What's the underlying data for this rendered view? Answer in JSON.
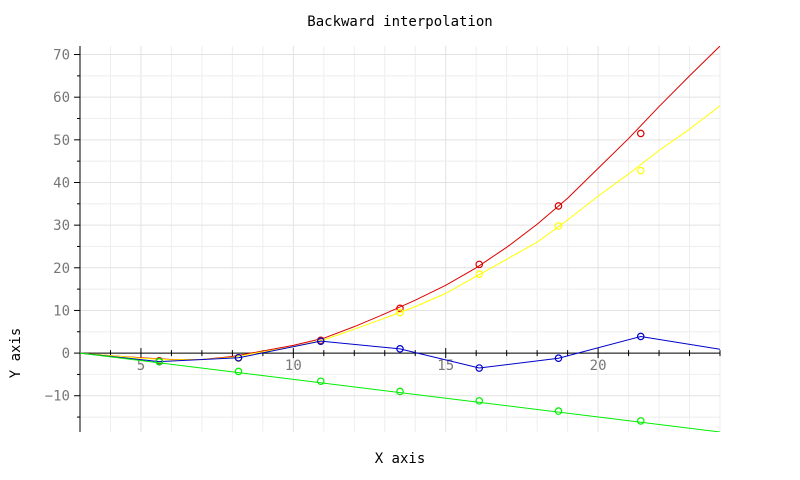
{
  "chart_data": {
    "type": "line",
    "title": "Backward interpolation",
    "xlabel": "X axis",
    "ylabel": "Y axis",
    "xlim": [
      3,
      24
    ],
    "ylim": [
      -18.5,
      72
    ],
    "x_major_ticks": [
      5,
      10,
      15,
      20
    ],
    "x_minor_step": 1,
    "y_major_ticks": [
      -10,
      0,
      10,
      20,
      30,
      40,
      50,
      60,
      70
    ],
    "y_minor_step": 5,
    "grid": true,
    "legend": "none",
    "series": [
      {
        "color": "#dd0000",
        "curve": [
          [
            3,
            0
          ],
          [
            4,
            -0.6
          ],
          [
            5,
            -1.1
          ],
          [
            6,
            -1.5
          ],
          [
            7,
            -1.5
          ],
          [
            8,
            -0.8
          ],
          [
            9,
            0.5
          ],
          [
            10,
            1.8
          ],
          [
            11,
            3.5
          ],
          [
            12,
            6.2
          ],
          [
            13,
            9.2
          ],
          [
            14,
            12.4
          ],
          [
            15,
            15.9
          ],
          [
            16,
            20.0
          ],
          [
            17,
            24.8
          ],
          [
            18,
            30.2
          ],
          [
            19,
            36.3
          ],
          [
            20,
            43.3
          ],
          [
            21,
            50.3
          ],
          [
            22,
            57.8
          ],
          [
            23,
            65.0
          ],
          [
            24,
            72.0
          ]
        ],
        "markers": [
          [
            5.6,
            -1.8
          ],
          [
            8.2,
            -1.1
          ],
          [
            10.9,
            3.0
          ],
          [
            13.5,
            10.5
          ],
          [
            16.1,
            20.8
          ],
          [
            18.7,
            34.5
          ],
          [
            21.4,
            51.5
          ]
        ]
      },
      {
        "color": "#ffff00",
        "curve": [
          [
            3,
            0
          ],
          [
            4,
            -0.6
          ],
          [
            5,
            -1.2
          ],
          [
            6,
            -1.6
          ],
          [
            7,
            -1.5
          ],
          [
            8,
            -1.0
          ],
          [
            9,
            0.3
          ],
          [
            10,
            1.5
          ],
          [
            11,
            3.1
          ],
          [
            12,
            5.6
          ],
          [
            13,
            8.2
          ],
          [
            14,
            10.9
          ],
          [
            15,
            14.0
          ],
          [
            16,
            18.0
          ],
          [
            17,
            22.0
          ],
          [
            18,
            26.0
          ],
          [
            19,
            31.2
          ],
          [
            20,
            36.8
          ],
          [
            21,
            42.0
          ],
          [
            22,
            47.5
          ],
          [
            23,
            52.5
          ],
          [
            24,
            58.0
          ]
        ],
        "markers": [
          [
            5.6,
            -2.0
          ],
          [
            8.2,
            -1.2
          ],
          [
            10.9,
            2.8
          ],
          [
            13.5,
            9.5
          ],
          [
            16.1,
            18.5
          ],
          [
            18.7,
            29.8
          ],
          [
            21.4,
            42.8
          ]
        ]
      },
      {
        "color": "#0000cc",
        "curve": [
          [
            3,
            0
          ],
          [
            5.6,
            -2.0
          ],
          [
            8.2,
            -1.1
          ],
          [
            10.9,
            2.8
          ],
          [
            13.5,
            1.0
          ],
          [
            16.1,
            -3.5
          ],
          [
            18.7,
            -1.2
          ],
          [
            21.4,
            3.9
          ],
          [
            24,
            0.9
          ]
        ],
        "markers": [
          [
            5.6,
            -2.0
          ],
          [
            8.2,
            -1.1
          ],
          [
            10.9,
            2.8
          ],
          [
            13.5,
            1.0
          ],
          [
            16.1,
            -3.5
          ],
          [
            18.7,
            -1.2
          ],
          [
            21.4,
            3.9
          ]
        ]
      },
      {
        "color": "#00ee00",
        "curve": [
          [
            3,
            0
          ],
          [
            24,
            -18.5
          ]
        ],
        "markers": [
          [
            5.6,
            -2.0
          ],
          [
            8.2,
            -4.3
          ],
          [
            10.9,
            -6.6
          ],
          [
            13.5,
            -9.0
          ],
          [
            16.1,
            -11.2
          ],
          [
            18.7,
            -13.6
          ],
          [
            21.4,
            -15.9
          ]
        ]
      }
    ]
  }
}
